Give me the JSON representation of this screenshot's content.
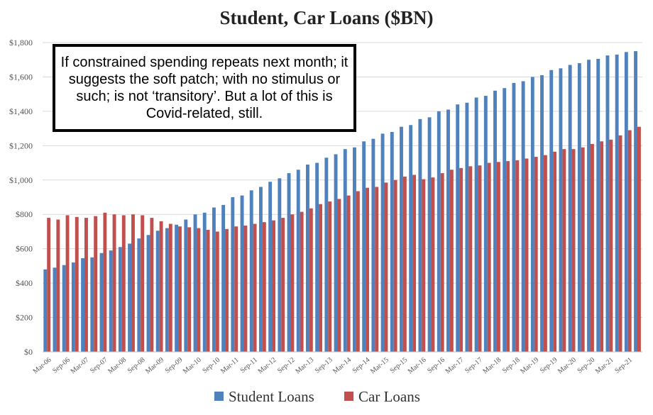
{
  "chart_data": {
    "type": "bar",
    "title": "Student, Car Loans ($BN)",
    "xlabel": "",
    "ylabel": "",
    "ylim": [
      0,
      1800
    ],
    "y_ticks": [
      "$0",
      "$200",
      "$400",
      "$600",
      "$800",
      "$1,000",
      "$1,200",
      "$1,400",
      "$1,600",
      "$1,800"
    ],
    "y_tick_values": [
      0,
      200,
      400,
      600,
      800,
      1000,
      1200,
      1400,
      1600,
      1800
    ],
    "grid": true,
    "legend_position": "bottom",
    "categories": [
      "Mar-06",
      "Jun-06",
      "Sep-06",
      "Dec-06",
      "Mar-07",
      "Jun-07",
      "Sep-07",
      "Dec-07",
      "Mar-08",
      "Jun-08",
      "Sep-08",
      "Dec-08",
      "Mar-09",
      "Jun-09",
      "Sep-09",
      "Dec-09",
      "Mar-10",
      "Jun-10",
      "Sep-10",
      "Dec-10",
      "Mar-11",
      "Jun-11",
      "Sep-11",
      "Dec-11",
      "Mar-12",
      "Jun-12",
      "Sep-12",
      "Dec-12",
      "Mar-13",
      "Jun-13",
      "Sep-13",
      "Dec-13",
      "Mar-14",
      "Jun-14",
      "Sep-14",
      "Dec-14",
      "Mar-15",
      "Jun-15",
      "Sep-15",
      "Dec-15",
      "Mar-16",
      "Jun-16",
      "Sep-16",
      "Dec-16",
      "Mar-17",
      "Jun-17",
      "Sep-17",
      "Dec-17",
      "Mar-18",
      "Jun-18",
      "Sep-18",
      "Dec-18",
      "Mar-19",
      "Jun-19",
      "Sep-19",
      "Dec-19",
      "Mar-20",
      "Jun-20",
      "Sep-20",
      "Dec-20",
      "Mar-21",
      "Jun-21",
      "Sep-21",
      "Dec-21"
    ],
    "x_tick_labels": [
      "Mar-06",
      "Sep-06",
      "Mar-07",
      "Sep-07",
      "Mar-08",
      "Sep-08",
      "Mar-09",
      "Sep-09",
      "Mar-10",
      "Sep-10",
      "Mar-11",
      "Sep-11",
      "Mar-12",
      "Sep-12",
      "Mar-13",
      "Sep-13",
      "Mar-14",
      "Sep-14",
      "Mar-15",
      "Sep-15",
      "Mar-16",
      "Sep-16",
      "Mar-17",
      "Sep-17",
      "Mar-18",
      "Sep-18",
      "Mar-19",
      "Sep-19",
      "Mar-20",
      "Sep-20",
      "Mar-21",
      "Sep-21"
    ],
    "series": [
      {
        "name": "Student Loans",
        "color": "#4f81bd",
        "values": [
          480,
          490,
          505,
          520,
          545,
          550,
          575,
          590,
          610,
          630,
          660,
          680,
          705,
          720,
          740,
          770,
          800,
          810,
          840,
          855,
          900,
          910,
          940,
          960,
          990,
          1010,
          1040,
          1060,
          1090,
          1100,
          1130,
          1150,
          1180,
          1190,
          1225,
          1240,
          1270,
          1280,
          1310,
          1320,
          1355,
          1365,
          1400,
          1410,
          1440,
          1450,
          1480,
          1490,
          1520,
          1535,
          1565,
          1575,
          1600,
          1610,
          1640,
          1650,
          1670,
          1680,
          1700,
          1705,
          1725,
          1730,
          1745,
          1750
        ]
      },
      {
        "name": "Car Loans",
        "color": "#c0504d",
        "values": [
          780,
          770,
          795,
          785,
          780,
          790,
          810,
          800,
          795,
          800,
          795,
          780,
          760,
          745,
          730,
          725,
          720,
          710,
          700,
          715,
          730,
          735,
          745,
          755,
          765,
          780,
          800,
          815,
          835,
          860,
          875,
          890,
          910,
          935,
          955,
          960,
          985,
          1000,
          1020,
          1030,
          1005,
          1015,
          1040,
          1060,
          1070,
          1080,
          1085,
          1100,
          1105,
          1110,
          1115,
          1125,
          1135,
          1145,
          1165,
          1180,
          1180,
          1190,
          1210,
          1225,
          1235,
          1260,
          1290,
          1310
        ]
      }
    ],
    "annotation": "If constrained spending repeats next month; it suggests the soft patch; with no stimulus or such; is not ‘transitory’. But a lot of this is Covid-related, still."
  }
}
